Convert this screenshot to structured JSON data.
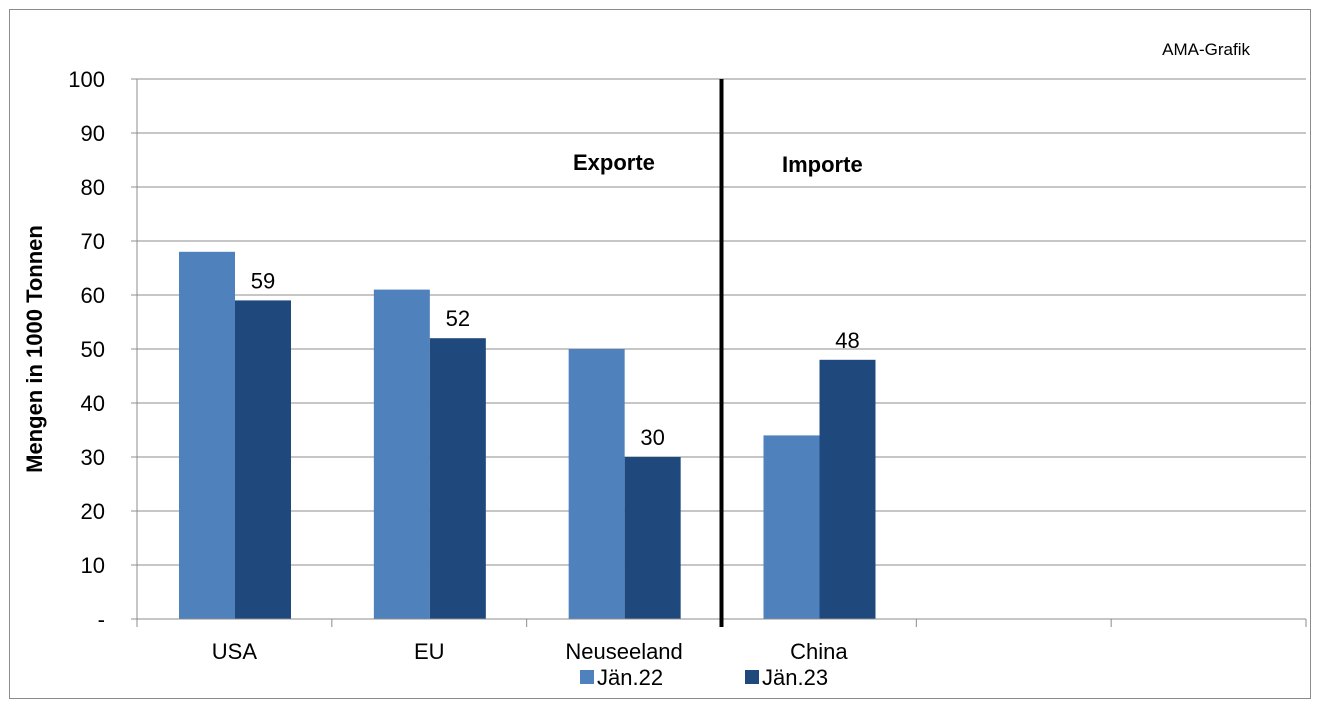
{
  "chart_data": {
    "type": "bar",
    "credit": "AMA-Grafik",
    "ylabel": "Mengen in 1000 Tonnen",
    "xlabel": "",
    "ylim": [
      0,
      100
    ],
    "yticks": [
      0,
      10,
      20,
      30,
      40,
      50,
      60,
      70,
      80,
      90,
      100
    ],
    "ytick_labels": [
      "-",
      "10",
      "20",
      "30",
      "40",
      "50",
      "60",
      "70",
      "80",
      "90",
      "100"
    ],
    "categories": [
      "USA",
      "EU",
      "Neuseeland",
      "China",
      "",
      ""
    ],
    "series": [
      {
        "name": "Jän.22",
        "values": [
          68,
          61,
          50,
          34,
          null,
          null
        ],
        "color": "#4f81bd"
      },
      {
        "name": "Jän.23",
        "values": [
          59,
          52,
          30,
          48,
          null,
          null
        ],
        "color": "#1f497d"
      }
    ],
    "data_labels": {
      "series_index": 1,
      "values": [
        59,
        52,
        30,
        48
      ]
    },
    "annotations": {
      "exports": "Exporte",
      "imports": "Importe"
    },
    "divider_after_category": 2,
    "grid": true,
    "legend": "bottom"
  }
}
